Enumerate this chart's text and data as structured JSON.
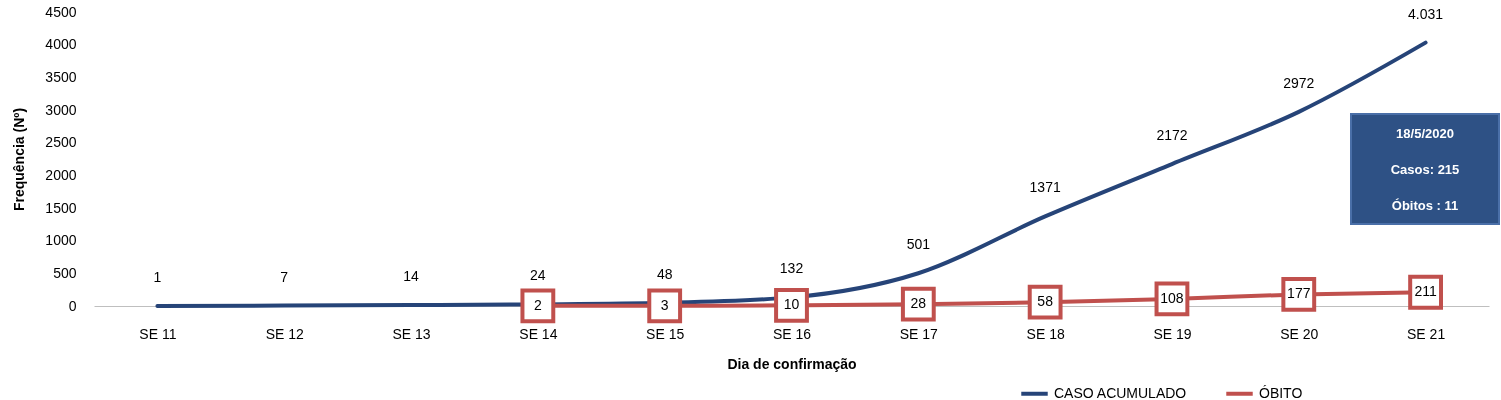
{
  "chart_data": {
    "type": "line",
    "xlabel": "Dia de confirmação",
    "ylabel": "Frequência (Nº)",
    "categories": [
      "SE 11",
      "SE 12",
      "SE 13",
      "SE 14",
      "SE 15",
      "SE 16",
      "SE 17",
      "SE 18",
      "SE 19",
      "SE 20",
      "SE 21"
    ],
    "ylim": [
      0,
      4500
    ],
    "yticks": [
      0,
      500,
      1000,
      1500,
      2000,
      2500,
      3000,
      3500,
      4000,
      4500
    ],
    "series": [
      {
        "name": "CASO ACUMULADO",
        "color": "#264478",
        "marker": "none",
        "values": [
          1,
          7,
          14,
          24,
          48,
          132,
          501,
          1371,
          2172,
          2972,
          4031
        ],
        "value_labels": [
          "1",
          "7",
          "14",
          "24",
          "48",
          "132",
          "501",
          "1371",
          "2172",
          "2972",
          "4.031"
        ]
      },
      {
        "name": "ÓBITO",
        "color": "#c0504d",
        "marker": "square",
        "values": [
          null,
          null,
          null,
          2,
          3,
          10,
          28,
          58,
          108,
          177,
          211
        ],
        "value_labels": [
          null,
          null,
          null,
          "2",
          "3",
          "10",
          "28",
          "58",
          "108",
          "177",
          "211"
        ]
      }
    ],
    "legend": "bottom right",
    "annotations": [
      "18/5/2020",
      "Casos: 215",
      "Óbitos :  11"
    ]
  }
}
